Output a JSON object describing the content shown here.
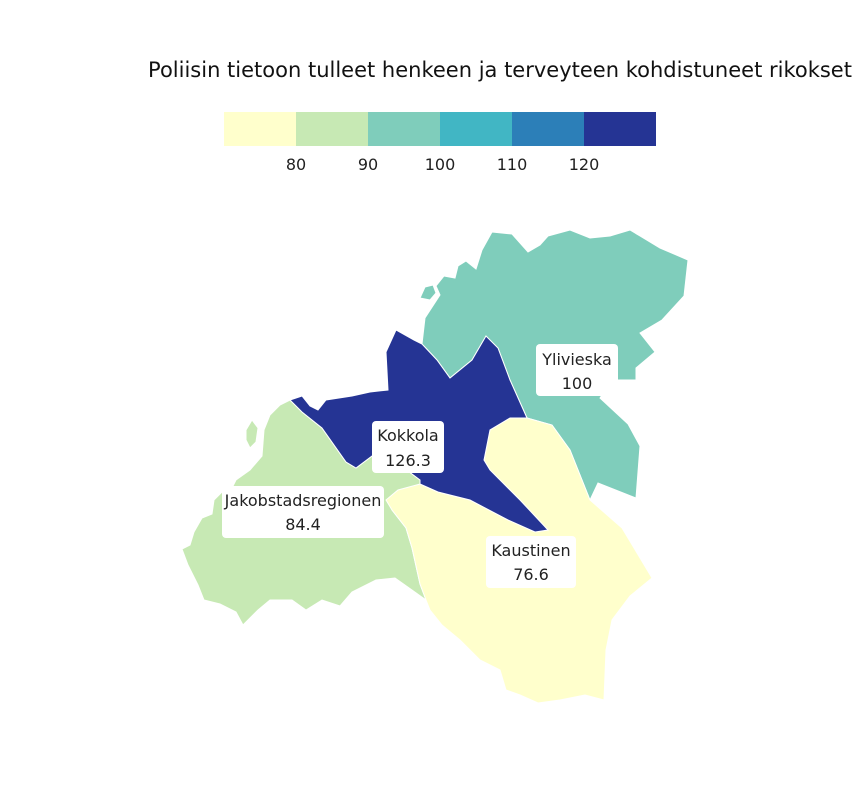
{
  "title": "Poliisin tietoon tulleet henkeen ja terveyteen kohdistuneet rikokset",
  "legend": {
    "ticks": [
      "80",
      "90",
      "100",
      "110",
      "120"
    ],
    "colors": [
      "#ffffcc",
      "#c7e9b4",
      "#7fcdbb",
      "#41b6c4",
      "#2c7fb8",
      "#253494"
    ],
    "breaks": [
      80,
      90,
      100,
      110,
      120
    ]
  },
  "chart_data": {
    "type": "choropleth",
    "title": "Poliisin tietoon tulleet henkeen ja terveyteen kohdistuneet rikokset",
    "regions": [
      {
        "name": "Ylivieska",
        "value": 100,
        "value_label": "100",
        "color": "#7fcdbb"
      },
      {
        "name": "Kokkola",
        "value": 126.3,
        "value_label": "126.3",
        "color": "#253494"
      },
      {
        "name": "Jakobstadsregionen",
        "value": 84.4,
        "value_label": "84.4",
        "color": "#c7e9b4"
      },
      {
        "name": "Kaustinen",
        "value": 76.6,
        "value_label": "76.6",
        "color": "#ffffcc"
      }
    ]
  }
}
